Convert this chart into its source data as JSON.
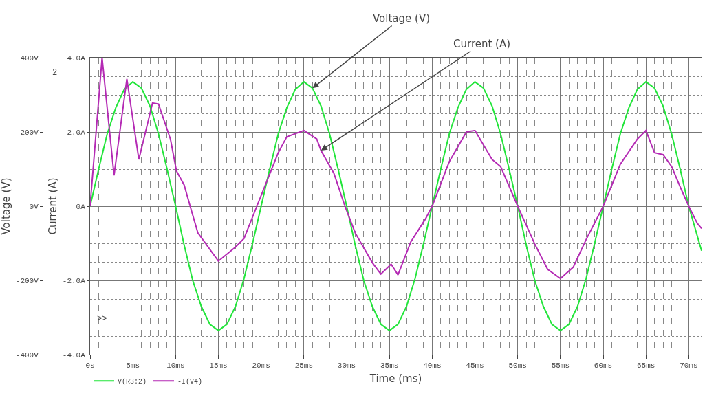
{
  "chart_data": {
    "type": "line",
    "xlabel": "Time (ms)",
    "ylabel": "Voltage (V)",
    "y2label": "Current (A)",
    "xlim": [
      0,
      71.5
    ],
    "xticks": [
      {
        "value": 0,
        "label": "0s"
      },
      {
        "value": 5,
        "label": "5ms"
      },
      {
        "value": 10,
        "label": "10ms"
      },
      {
        "value": 15,
        "label": "15ms"
      },
      {
        "value": 20,
        "label": "20ms"
      },
      {
        "value": 25,
        "label": "25ms"
      },
      {
        "value": 30,
        "label": "30ms"
      },
      {
        "value": 35,
        "label": "35ms"
      },
      {
        "value": 40,
        "label": "40ms"
      },
      {
        "value": 45,
        "label": "45ms"
      },
      {
        "value": 50,
        "label": "50ms"
      },
      {
        "value": 55,
        "label": "55ms"
      },
      {
        "value": 60,
        "label": "60ms"
      },
      {
        "value": 65,
        "label": "65ms"
      },
      {
        "value": 70,
        "label": "70ms"
      }
    ],
    "ylim": [
      -400,
      400
    ],
    "yticks": [
      {
        "value": -400,
        "label": "-400V"
      },
      {
        "value": -200,
        "label": "-200V"
      },
      {
        "value": 0,
        "label": "0V"
      },
      {
        "value": 200,
        "label": "200V"
      },
      {
        "value": 400,
        "label": "400V"
      }
    ],
    "y2lim": [
      -4,
      4
    ],
    "y2ticks": [
      {
        "value": -4,
        "label": "-4.0A"
      },
      {
        "value": -2,
        "label": "-2.0A"
      },
      {
        "value": 0,
        "label": "0A"
      },
      {
        "value": 2,
        "label": "2.0A"
      },
      {
        "value": 4,
        "label": "4.0A"
      }
    ],
    "grid": true,
    "legend": "bottom left",
    "line_style": "solid",
    "series": [
      {
        "name": "V(R3:2)",
        "color": "#22e53a",
        "x": [
          0,
          1,
          2,
          3,
          4,
          5,
          6,
          7,
          8,
          9,
          10,
          11,
          12,
          13,
          14,
          15,
          16,
          17,
          18,
          19,
          20,
          21,
          22,
          23,
          24,
          25,
          26,
          27,
          28,
          29,
          30,
          31,
          32,
          33,
          34,
          35,
          36,
          37,
          38,
          39,
          40,
          41,
          42,
          43,
          44,
          45,
          46,
          47,
          48,
          49,
          50,
          51,
          52,
          53,
          54,
          55,
          56,
          57,
          58,
          59,
          60,
          61,
          62,
          63,
          64,
          65,
          66,
          67,
          68,
          69,
          70,
          71.5
        ],
        "values": [
          0,
          100,
          195,
          265,
          315,
          335,
          318,
          270,
          195,
          100,
          0,
          -105,
          -200,
          -270,
          -318,
          -335,
          -318,
          -270,
          -195,
          -100,
          0,
          100,
          195,
          265,
          315,
          335,
          318,
          270,
          195,
          100,
          0,
          -105,
          -200,
          -270,
          -318,
          -335,
          -318,
          -270,
          -195,
          -100,
          0,
          100,
          195,
          265,
          315,
          335,
          318,
          270,
          195,
          100,
          0,
          -105,
          -200,
          -270,
          -318,
          -335,
          -318,
          -270,
          -195,
          -100,
          0,
          100,
          195,
          265,
          315,
          335,
          318,
          270,
          195,
          100,
          0,
          -120
        ]
      },
      {
        "name": "-I(V4)",
        "color": "#b42ab4",
        "axis": "y2",
        "x": [
          0,
          1.4,
          2.8,
          4.3,
          5.7,
          7.3,
          8,
          9.4,
          10.1,
          11,
          11.7,
          12.6,
          15,
          17,
          18,
          19.5,
          22,
          23,
          25,
          26.5,
          27,
          28.5,
          29.8,
          31,
          33,
          34,
          35.2,
          36,
          37.5,
          39.2,
          40,
          42,
          44,
          45,
          47,
          48,
          50,
          52,
          53.5,
          55,
          56.5,
          58,
          60,
          62,
          64,
          65,
          66,
          67,
          68,
          69,
          70,
          71,
          71.5
        ],
        "values": [
          0,
          4.0,
          0.83,
          3.43,
          1.26,
          2.78,
          2.75,
          1.8,
          0.95,
          0.57,
          0,
          -0.72,
          -1.48,
          -1.1,
          -0.87,
          0,
          1.44,
          1.87,
          2.04,
          1.81,
          1.5,
          0.89,
          0,
          -0.72,
          -1.52,
          -1.83,
          -1.56,
          -1.85,
          -0.96,
          -0.35,
          0,
          1.2,
          2.0,
          2.04,
          1.26,
          1.07,
          0,
          -1.02,
          -1.7,
          -1.95,
          -1.64,
          -0.9,
          0,
          1.13,
          1.81,
          2.04,
          1.44,
          1.39,
          1.07,
          0.52,
          0,
          -0.46,
          -0.6
        ]
      }
    ],
    "annotations": [
      {
        "text": "Voltage (V)",
        "x": 26,
        "y": 318
      },
      {
        "text": "Current (A)",
        "x": 27,
        "y": 150
      },
      "2",
      ">>"
    ]
  }
}
